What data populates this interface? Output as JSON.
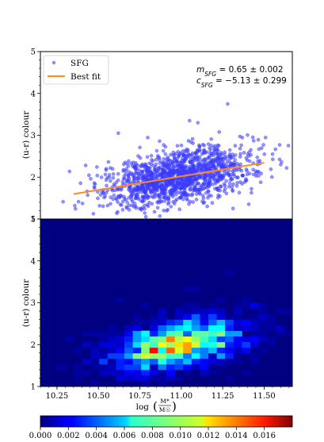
{
  "chart_data": [
    {
      "type": "scatter",
      "ylabel": "(u-r) colour",
      "xlim": [
        10.15,
        11.67
      ],
      "ylim": [
        1,
        5
      ],
      "yticks": [
        "1",
        "2",
        "3",
        "4",
        "5"
      ],
      "legend": {
        "placement": "top-left",
        "entries": [
          {
            "label": "SFG",
            "marker": "point",
            "color": "#3b3bff"
          },
          {
            "label": "Best fit",
            "marker": "line",
            "color": "#ff8c1a"
          }
        ]
      },
      "annotations": [
        "m_SFG = 0.65 ± 0.002",
        "c_SFG = −5.13 ± 0.299"
      ],
      "fit": {
        "slope": 0.65,
        "intercept": -5.13,
        "x": [
          10.35,
          11.5
        ],
        "color": "#ff8c1a"
      },
      "series": [
        {
          "name": "SFG",
          "color": "#3b3bff",
          "distribution": {
            "x_mean": 10.97,
            "x_sd": 0.22,
            "scatter_sd": 0.28,
            "n": 1400
          },
          "outliers": [
            [
              11.28,
              3.75
            ],
            [
              11.05,
              3.35
            ],
            [
              11.1,
              3.3
            ],
            [
              10.62,
              3.05
            ],
            [
              11.6,
              2.3
            ]
          ]
        }
      ]
    },
    {
      "type": "heatmap",
      "xlabel": "log (M*/M☉)",
      "ylabel": "(u-r) colour",
      "xlim": [
        10.15,
        11.67
      ],
      "ylim": [
        1,
        5
      ],
      "xticks": [
        "10.25",
        "10.50",
        "10.75",
        "11.00",
        "11.25",
        "11.50"
      ],
      "yticks": [
        "1",
        "2",
        "3",
        "4",
        "5"
      ],
      "bins": {
        "x": 30,
        "y": 30
      },
      "colormap": "jet",
      "colorbar": {
        "orientation": "horizontal",
        "range": [
          0,
          0.018
        ],
        "ticks": [
          "0.000",
          "0.002",
          "0.004",
          "0.006",
          "0.008",
          "0.010",
          "0.012",
          "0.014",
          "0.016"
        ]
      }
    }
  ],
  "annotation_parts": {
    "m_label": "m",
    "m_sub": "SFG",
    "m_value": " = 0.65 ± 0.002",
    "c_label": "c",
    "c_sub": "SFG",
    "c_value": " = −5.13 ± 0.299"
  },
  "xlabel_parts": {
    "log": "log",
    "num": "M*",
    "den": "M☉"
  }
}
